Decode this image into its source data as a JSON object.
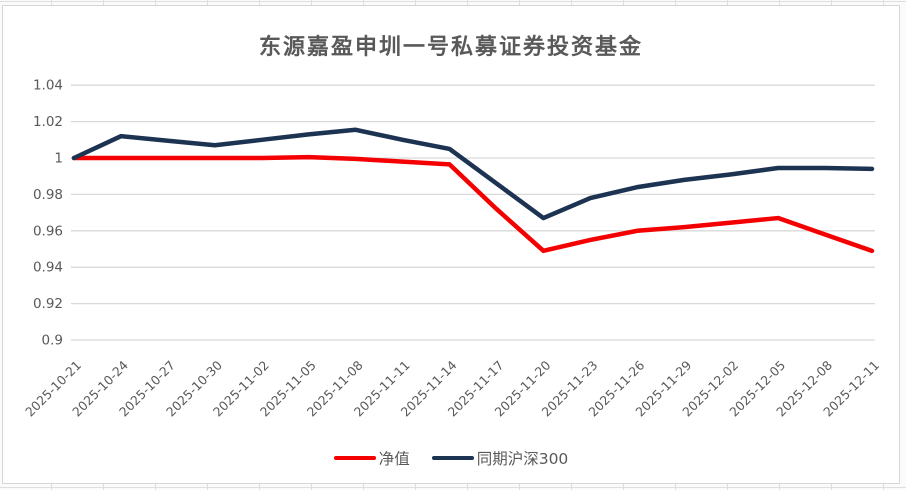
{
  "chart_data": {
    "type": "line",
    "title": "东源嘉盈申圳一号私募证券投资基金",
    "x_labels": [
      "2025-10-21",
      "2025-10-24",
      "2025-10-27",
      "2025-10-30",
      "2025-11-02",
      "2025-11-05",
      "2025-11-08",
      "2025-11-11",
      "2025-11-14",
      "2025-11-17",
      "2025-11-20",
      "2025-11-23",
      "2025-11-26",
      "2025-11-29",
      "2025-12-02",
      "2025-12-05",
      "2025-12-08",
      "2025-12-11"
    ],
    "series": [
      {
        "name": "净值",
        "color": "#f40000",
        "values": [
          1.0,
          1.0,
          1.0,
          1.0,
          1.0,
          1.0005,
          0.9995,
          0.998,
          0.9965,
          0.972,
          0.949,
          0.955,
          0.96,
          0.962,
          0.9645,
          0.967,
          0.958,
          0.949
        ]
      },
      {
        "name": "同期沪深300",
        "color": "#1d3352",
        "values": [
          1.0,
          1.012,
          1.0095,
          1.007,
          1.01,
          1.013,
          1.0155,
          1.01,
          1.005,
          0.986,
          0.967,
          0.978,
          0.984,
          0.988,
          0.991,
          0.9945,
          0.9945,
          0.994
        ]
      }
    ],
    "ylim": [
      0.9,
      1.04
    ],
    "yticks": [
      {
        "value": 1.04,
        "label": "1.04"
      },
      {
        "value": 1.02,
        "label": "1.02"
      },
      {
        "value": 1.0,
        "label": "1"
      },
      {
        "value": 0.98,
        "label": "0.98"
      },
      {
        "value": 0.96,
        "label": "0.96"
      },
      {
        "value": 0.94,
        "label": "0.94"
      },
      {
        "value": 0.92,
        "label": "0.92"
      },
      {
        "value": 0.9,
        "label": "0.9"
      }
    ],
    "grid": "horizontal",
    "legend_position": "bottom",
    "axis_text_color": "#595959",
    "grid_color": "#d9d9d9"
  }
}
